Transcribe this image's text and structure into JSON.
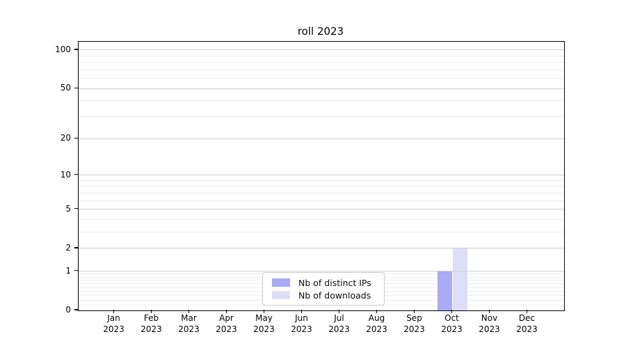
{
  "chart_data": {
    "type": "bar",
    "title": "roll 2023",
    "categories": [
      "Jan 2023",
      "Feb 2023",
      "Mar 2023",
      "Apr 2023",
      "May 2023",
      "Jun 2023",
      "Jul 2023",
      "Aug 2023",
      "Sep 2023",
      "Oct 2023",
      "Nov 2023",
      "Dec 2023"
    ],
    "series": [
      {
        "name": "Nb of distinct IPs",
        "color": "#aaaaf5",
        "values": [
          0,
          0,
          0,
          0,
          0,
          0,
          0,
          0,
          0,
          1,
          0,
          0
        ]
      },
      {
        "name": "Nb of downloads",
        "color": "#dedef8",
        "values": [
          0,
          0,
          0,
          0,
          0,
          0,
          0,
          0,
          0,
          2,
          0,
          0
        ]
      }
    ],
    "y_axis": {
      "scale": "log1p",
      "tick_values": [
        0,
        1,
        2,
        5,
        10,
        20,
        50,
        100
      ],
      "minor_gridline_values": [
        0.1,
        0.2,
        0.3,
        0.4,
        0.5,
        0.6,
        0.7,
        0.8,
        0.9,
        3,
        4,
        6,
        7,
        8,
        9,
        30,
        40,
        60,
        70,
        80,
        90
      ],
      "max": 115
    },
    "xlabel": "",
    "ylabel": "",
    "grid": true,
    "legend_position": "lower center",
    "colors": {
      "grid_major": "#cfcfcf",
      "grid_minor": "#ededed",
      "axis": "#000000",
      "background": "#ffffff",
      "text": "#000000"
    }
  }
}
